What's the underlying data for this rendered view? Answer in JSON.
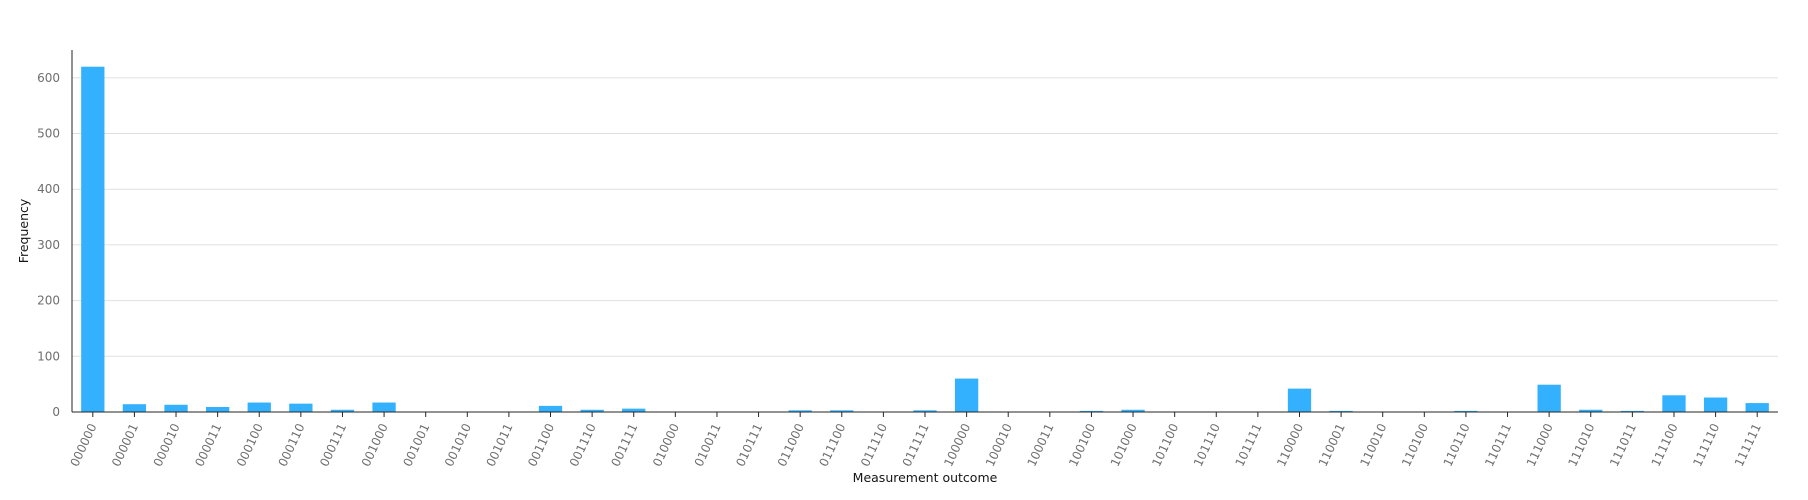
{
  "chart_data": {
    "type": "bar",
    "xlabel": "Measurement outcome",
    "ylabel": "Frequency",
    "ylim": [
      0,
      650
    ],
    "yticks": [
      0,
      100,
      200,
      300,
      400,
      500,
      600
    ],
    "grid": true,
    "bar_color": "#33b1ff",
    "categories": [
      "000000",
      "000001",
      "000010",
      "000011",
      "000100",
      "000110",
      "000111",
      "001000",
      "001001",
      "001010",
      "001011",
      "001100",
      "001110",
      "001111",
      "010000",
      "010011",
      "010111",
      "011000",
      "011100",
      "011110",
      "011111",
      "100000",
      "100010",
      "100011",
      "100100",
      "101000",
      "101100",
      "101110",
      "101111",
      "110000",
      "110001",
      "110010",
      "110100",
      "110110",
      "110111",
      "111000",
      "111010",
      "111011",
      "111100",
      "111110",
      "111111"
    ],
    "values": [
      620,
      14,
      13,
      9,
      17,
      15,
      4,
      17,
      0,
      0,
      0,
      11,
      4,
      6,
      0,
      0,
      0,
      3,
      3,
      0,
      3,
      60,
      0,
      0,
      2,
      4,
      0,
      0,
      0,
      42,
      2,
      0,
      0,
      2,
      0,
      49,
      4,
      2,
      30,
      26,
      16
    ]
  }
}
